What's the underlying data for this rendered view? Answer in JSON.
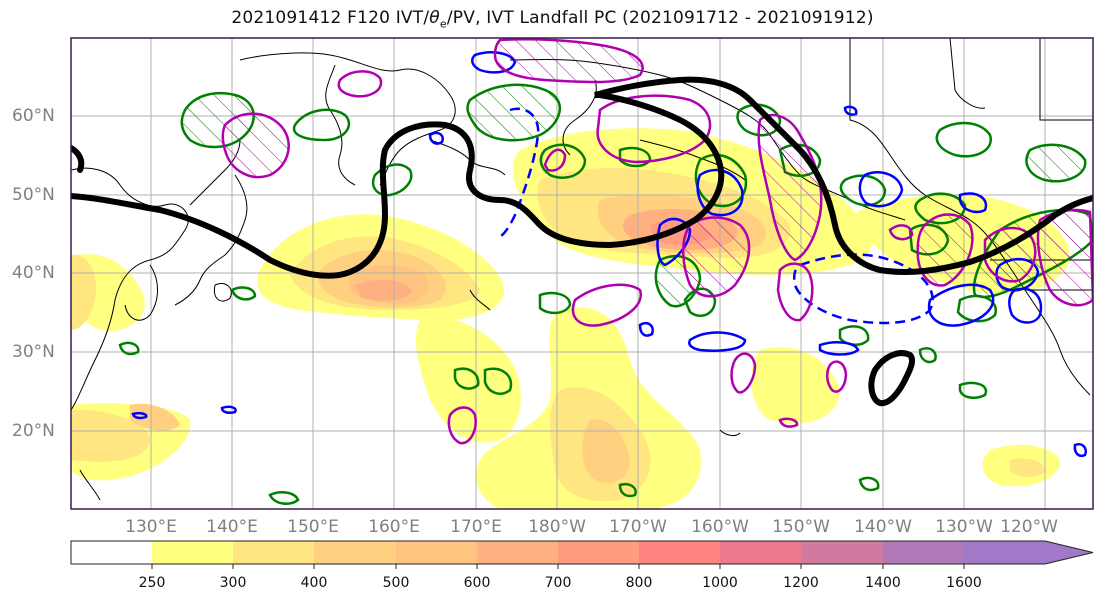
{
  "title": "2021091412 F120 IVT/θe/PV, IVT Landfall PC (2021091712 - 2021091912)",
  "title_parts": {
    "prefix": "2021091412 F120 IVT/",
    "theta": "θ",
    "theta_sub": "e",
    "suffix": "/PV, IVT Landfall PC (2021091712 - 2021091912)"
  },
  "map": {
    "lat_labels": [
      "60°N",
      "50°N",
      "40°N",
      "30°N",
      "20°N"
    ],
    "lon_labels": [
      "130°E",
      "140°E",
      "150°E",
      "160°E",
      "170°E",
      "180°W",
      "170°W",
      "160°W",
      "150°W",
      "140°W",
      "130°W",
      "120°W"
    ],
    "colors": {
      "theta_contour": "#000000",
      "pv_positive": "#008000",
      "pv_negative": "#0000ff",
      "landfall_pc": "#b000b0",
      "coastline": "#000000",
      "gridline": "#b0b0b0",
      "frame": "#3a1a4a"
    }
  },
  "colorbar": {
    "tick_labels": [
      "250",
      "300",
      "400",
      "500",
      "600",
      "700",
      "800",
      "1000",
      "1200",
      "1400",
      "1600"
    ],
    "levels": [
      0,
      250,
      300,
      400,
      500,
      600,
      700,
      800,
      1000,
      1200,
      1400,
      1600
    ],
    "colors": [
      "#ffffff",
      "#ffff80",
      "#ffe680",
      "#ffd080",
      "#ffc480",
      "#ffb080",
      "#ff9c80",
      "#ff8480",
      "#ee7890",
      "#d07aa0",
      "#b07ab8",
      "#a07ac8"
    ]
  }
}
